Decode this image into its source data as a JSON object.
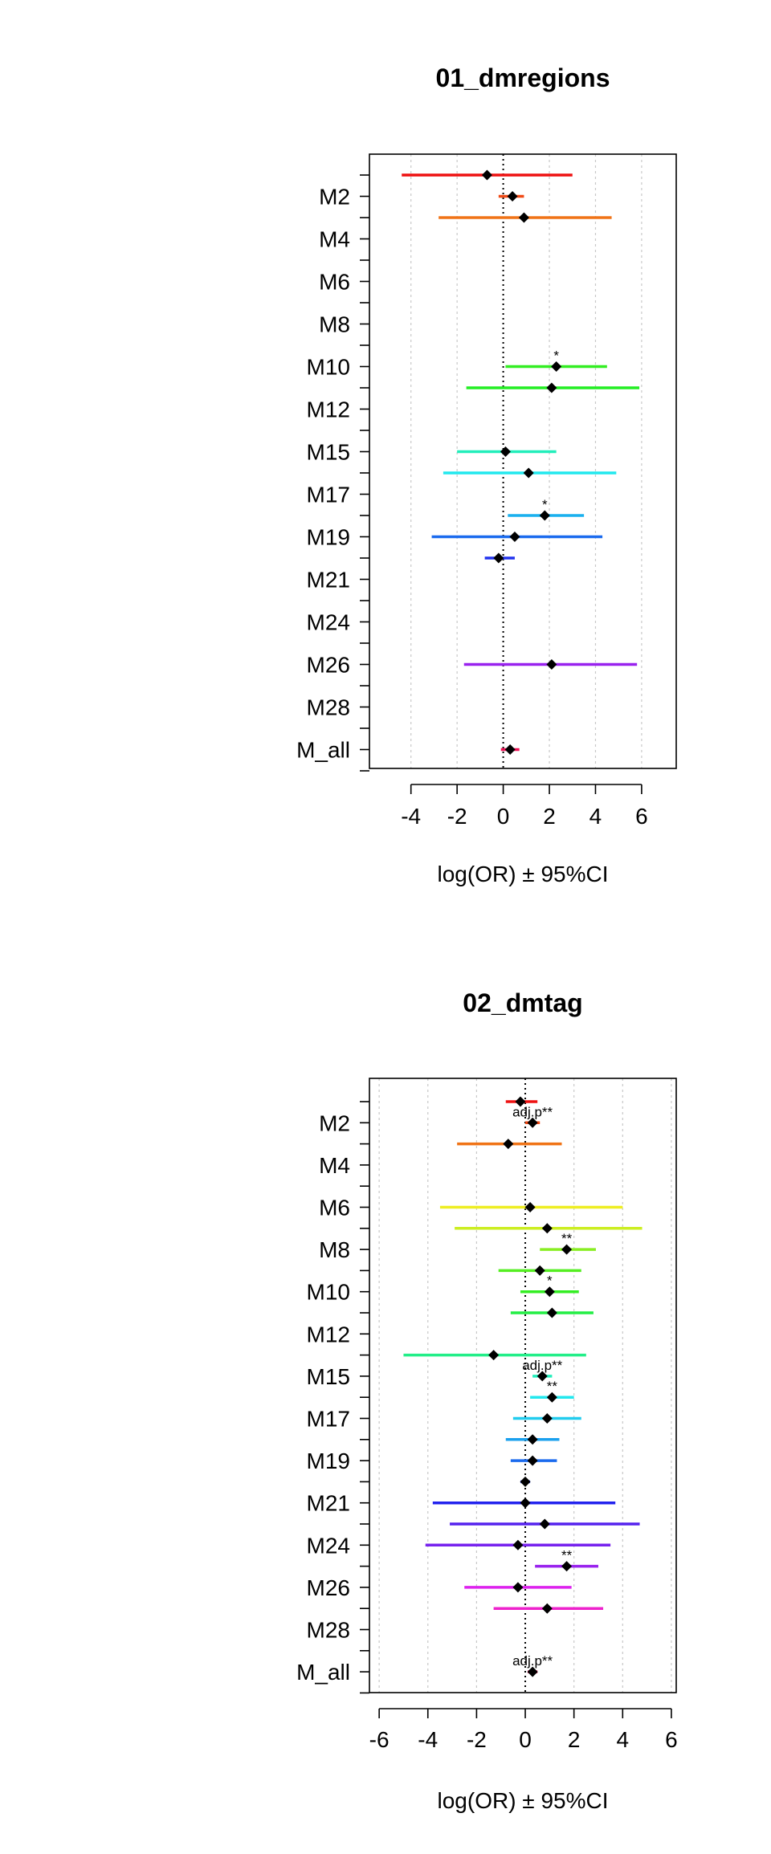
{
  "chart_data": [
    {
      "type": "forest",
      "title": "01_dmregions",
      "xlabel": "log(OR) ± 95%CI",
      "xlim": [
        -5.8,
        7.5
      ],
      "xticks": [
        -4,
        -2,
        0,
        2,
        4,
        6
      ],
      "reference_line": 0,
      "grid": true,
      "n_rows": 29,
      "y_tick_labels": [
        "M2",
        "M4",
        "M6",
        "M8",
        "M10",
        "M12",
        "M15",
        "M17",
        "M19",
        "M21",
        "M24",
        "M26",
        "M28",
        "M_all"
      ],
      "y_tick_rows": [
        2,
        4,
        6,
        8,
        10,
        12,
        14,
        16,
        18,
        20,
        22,
        24,
        26,
        28
      ],
      "points": [
        {
          "row": 1,
          "est": -0.7,
          "lo": -4.4,
          "hi": 3.0,
          "color": "#ee1111",
          "annot": ""
        },
        {
          "row": 2,
          "est": 0.4,
          "lo": -0.2,
          "hi": 0.9,
          "color": "#f04a16",
          "annot": ""
        },
        {
          "row": 3,
          "est": 0.9,
          "lo": -2.8,
          "hi": 4.7,
          "color": "#f07316",
          "annot": ""
        },
        {
          "row": 10,
          "est": 2.3,
          "lo": 0.1,
          "hi": 4.5,
          "color": "#33ee22",
          "annot": "*"
        },
        {
          "row": 11,
          "est": 2.1,
          "lo": -1.6,
          "hi": 5.9,
          "color": "#22ee22",
          "annot": ""
        },
        {
          "row": 14,
          "est": 0.1,
          "lo": -2.0,
          "hi": 2.3,
          "color": "#22eebb",
          "annot": ""
        },
        {
          "row": 15,
          "est": 1.1,
          "lo": -2.6,
          "hi": 4.9,
          "color": "#22e8ee",
          "annot": ""
        },
        {
          "row": 17,
          "est": 1.8,
          "lo": 0.2,
          "hi": 3.5,
          "color": "#1ab0ee",
          "annot": "*"
        },
        {
          "row": 18,
          "est": 0.5,
          "lo": -3.1,
          "hi": 4.3,
          "color": "#1a6aee",
          "annot": ""
        },
        {
          "row": 19,
          "est": -0.2,
          "lo": -0.8,
          "hi": 0.5,
          "color": "#2233ee",
          "annot": ""
        },
        {
          "row": 24,
          "est": 2.1,
          "lo": -1.7,
          "hi": 5.8,
          "color": "#9922ee",
          "annot": ""
        },
        {
          "row": 28,
          "est": 0.3,
          "lo": -0.1,
          "hi": 0.7,
          "color": "#ee1155",
          "annot": ""
        }
      ]
    },
    {
      "type": "forest",
      "title": "02_dmtag",
      "xlabel": "log(OR) ± 95%CI",
      "xlim": [
        -6.4,
        6.2
      ],
      "xticks": [
        -6,
        -4,
        -2,
        0,
        2,
        4,
        6
      ],
      "reference_line": 0,
      "grid": true,
      "n_rows": 29,
      "y_tick_labels": [
        "M2",
        "M4",
        "M6",
        "M8",
        "M10",
        "M12",
        "M15",
        "M17",
        "M19",
        "M21",
        "M24",
        "M26",
        "M28",
        "M_all"
      ],
      "y_tick_rows": [
        2,
        4,
        6,
        8,
        10,
        12,
        14,
        16,
        18,
        20,
        22,
        24,
        26,
        28
      ],
      "points": [
        {
          "row": 1,
          "est": -0.2,
          "lo": -0.8,
          "hi": 0.5,
          "color": "#ee1111",
          "annot": ""
        },
        {
          "row": 2,
          "est": 0.3,
          "lo": 0.0,
          "hi": 0.6,
          "color": "#f04a16",
          "annot": "adj.p**"
        },
        {
          "row": 3,
          "est": -0.7,
          "lo": -2.8,
          "hi": 1.5,
          "color": "#f07316",
          "annot": ""
        },
        {
          "row": 6,
          "est": 0.2,
          "lo": -3.5,
          "hi": 4.0,
          "color": "#eeee22",
          "annot": ""
        },
        {
          "row": 7,
          "est": 0.9,
          "lo": -2.9,
          "hi": 4.8,
          "color": "#ccee22",
          "annot": ""
        },
        {
          "row": 8,
          "est": 1.7,
          "lo": 0.6,
          "hi": 2.9,
          "color": "#88ee22",
          "annot": "**"
        },
        {
          "row": 9,
          "est": 0.6,
          "lo": -1.1,
          "hi": 2.3,
          "color": "#55ee22",
          "annot": ""
        },
        {
          "row": 10,
          "est": 1.0,
          "lo": -0.2,
          "hi": 2.2,
          "color": "#33ee22",
          "annot": "*"
        },
        {
          "row": 11,
          "est": 1.1,
          "lo": -0.6,
          "hi": 2.8,
          "color": "#22ee44",
          "annot": ""
        },
        {
          "row": 13,
          "est": -1.3,
          "lo": -5.0,
          "hi": 2.5,
          "color": "#22ee88",
          "annot": ""
        },
        {
          "row": 14,
          "est": 0.7,
          "lo": 0.3,
          "hi": 1.1,
          "color": "#22eebb",
          "annot": "adj.p**"
        },
        {
          "row": 15,
          "est": 1.1,
          "lo": 0.2,
          "hi": 2.0,
          "color": "#22e8ee",
          "annot": "**"
        },
        {
          "row": 16,
          "est": 0.9,
          "lo": -0.5,
          "hi": 2.3,
          "color": "#22ccee",
          "annot": ""
        },
        {
          "row": 17,
          "est": 0.3,
          "lo": -0.8,
          "hi": 1.4,
          "color": "#1aa0ee",
          "annot": ""
        },
        {
          "row": 18,
          "est": 0.3,
          "lo": -0.6,
          "hi": 1.3,
          "color": "#1a6aee",
          "annot": ""
        },
        {
          "row": 19,
          "est": 0.0,
          "lo": -0.2,
          "hi": 0.2,
          "color": "#2244ee",
          "annot": ""
        },
        {
          "row": 20,
          "est": 0.0,
          "lo": -3.8,
          "hi": 3.7,
          "color": "#2222ee",
          "annot": ""
        },
        {
          "row": 21,
          "est": 0.8,
          "lo": -3.1,
          "hi": 4.7,
          "color": "#5522ee",
          "annot": ""
        },
        {
          "row": 22,
          "est": -0.3,
          "lo": -4.1,
          "hi": 3.5,
          "color": "#7722ee",
          "annot": ""
        },
        {
          "row": 23,
          "est": 1.7,
          "lo": 0.4,
          "hi": 3.0,
          "color": "#9922ee",
          "annot": "**"
        },
        {
          "row": 24,
          "est": -0.3,
          "lo": -2.5,
          "hi": 1.9,
          "color": "#dd22ee",
          "annot": ""
        },
        {
          "row": 25,
          "est": 0.9,
          "lo": -1.3,
          "hi": 3.2,
          "color": "#ee22cc",
          "annot": ""
        },
        {
          "row": 28,
          "est": 0.3,
          "lo": 0.1,
          "hi": 0.5,
          "color": "#ee1155",
          "annot": "adj.p**"
        }
      ]
    }
  ]
}
